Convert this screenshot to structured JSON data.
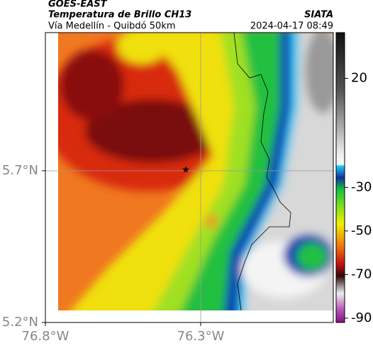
{
  "header": {
    "source": "GOES-EAST",
    "product": "Temperatura de Brillo CH13",
    "region": "Vía Medellín - Quibdó 50km",
    "agency": "SIATA",
    "timestamp": "2024-04-17 08:49"
  },
  "map": {
    "lat_range": [
      5.2,
      6.155
    ],
    "lon_range": [
      -76.8,
      -75.873
    ],
    "lat_ticks": [
      {
        "value": 5.7,
        "label": "5.7°N"
      },
      {
        "value": 5.2,
        "label": "5.2°N"
      }
    ],
    "lon_ticks": [
      {
        "value": -76.8,
        "label": "76.8°W"
      },
      {
        "value": -76.3,
        "label": "76.3°W"
      }
    ]
  },
  "colorbar": {
    "range": [
      -92,
      41
    ],
    "ticks": [
      20,
      -30,
      -50,
      -70,
      -90
    ]
  }
}
